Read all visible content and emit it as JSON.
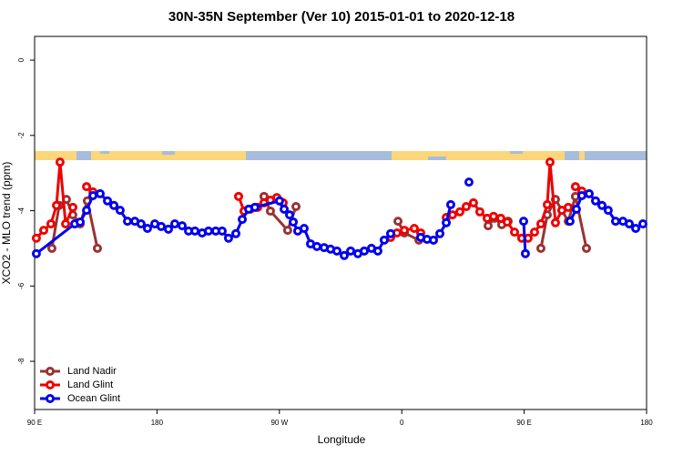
{
  "chart_data": {
    "type": "line",
    "title": "30N-35N September (Ver 10)   2015-01-01 to 2020-12-18",
    "x_label": "Longitude",
    "y_label": "XCO2 - MLO trend (ppm)",
    "xlim": [
      90,
      540
    ],
    "ylim": [
      -9.28,
      0.63
    ],
    "xticks": [
      {
        "value": 90,
        "label": "90 E"
      },
      180,
      {
        "value": 270,
        "label": "90 W"
      },
      {
        "value": 360,
        "label": "0"
      },
      {
        "value": 450,
        "label": "90 E"
      },
      {
        "value": 540,
        "label": "180"
      }
    ],
    "yticks": [
      0,
      -2,
      -4,
      -6,
      -8
    ],
    "legend": "bottom-left",
    "series": [
      {
        "name": "Land Nadir",
        "color": "#993333",
        "x": [
          102.7,
          108.1,
          113.4,
          118.1,
          123.5,
          128.8,
          136.2,
          null,
          258.7,
          263.4,
          276.1,
          282.2,
          null,
          357.2,
          361.9,
          372.6,
          null,
          423.5,
          428.1,
          433.5,
          438.2,
          null,
          462.3,
          467,
          473,
          477.7,
          482.4,
          487.7,
          495.8
        ],
        "values": [
          -5.0,
          -3.86,
          -3.7,
          -4.11,
          -4.35,
          -3.74,
          -5.0,
          null,
          -3.62,
          -4.01,
          -4.52,
          -3.89,
          null,
          -4.28,
          -4.59,
          -4.78,
          null,
          -4.4,
          -4.2,
          -4.37,
          -4.28,
          null,
          -5.0,
          -4.11,
          -3.7,
          -3.99,
          -4.28,
          -3.62,
          -5.0
        ]
      },
      {
        "name": "Land Glint",
        "color": "#ee0000",
        "x": [
          91.3,
          96.7,
          102,
          106.1,
          108.7,
          112.8,
          118.1,
          null,
          128.2,
          132.9,
          null,
          240,
          244,
          248.7,
          254,
          258.7,
          263.4,
          268.1,
          272.8,
          null,
          351.8,
          356.5,
          361.9,
          369.2,
          373.9,
          null,
          392.7,
          397.3,
          402.7,
          407.4,
          412.7,
          417.4,
          422.8,
          427.5,
          432.8,
          437.5,
          442.9,
          448.2,
          452.9,
          457.6,
          462.3,
          467,
          469,
          473,
          477.7,
          482.4,
          null,
          487.7,
          492.4
        ],
        "values": [
          -4.73,
          -4.52,
          -4.35,
          -3.86,
          -2.71,
          -4.35,
          -3.91,
          null,
          -3.36,
          -3.5,
          null,
          -3.62,
          -4.01,
          -3.96,
          -3.91,
          -3.79,
          -3.72,
          -3.65,
          -3.79,
          null,
          -4.71,
          -4.59,
          -4.52,
          -4.47,
          -4.59,
          null,
          -4.18,
          -4.11,
          -4.03,
          -3.89,
          -3.79,
          -4.03,
          -4.2,
          -4.15,
          -4.2,
          -4.3,
          -4.57,
          -4.73,
          -4.73,
          -4.57,
          -4.35,
          -3.84,
          -2.71,
          -4.32,
          -3.99,
          -3.91,
          null,
          -3.36,
          -3.48
        ]
      },
      {
        "name": "Ocean Glint",
        "color": "#0000ee",
        "x": [
          91.3,
          119.5,
          123.5,
          128.2,
          132.9,
          138.2,
          143.6,
          148.3,
          152.9,
          158.3,
          163.7,
          168.3,
          173,
          178.4,
          183.1,
          188.4,
          193.1,
          198.5,
          203.2,
          207.9,
          213.2,
          217.9,
          223.2,
          227.9,
          232.6,
          238,
          242.7,
          247.4,
          252,
          270.1,
          273.5,
          277.5,
          280.2,
          283.5,
          288.2,
          292.9,
          297.6,
          302.9,
          307.6,
          312.3,
          317.7,
          322.4,
          327.7,
          332.4,
          337.7,
          342.4,
          347.1,
          351.8,
          null,
          373.9,
          378.6,
          383.3,
          388,
          392.7,
          396,
          null,
          409.4,
          null,
          449.6,
          450.9,
          null,
          483.7,
          488.4,
          492.4,
          497.8,
          502.5,
          507.2,
          511.8,
          517.2,
          522.6,
          527.3,
          532,
          537.3
        ],
        "values": [
          -5.14,
          -4.35,
          -4.3,
          -3.99,
          -3.6,
          -3.55,
          -3.74,
          -3.86,
          -3.99,
          -4.28,
          -4.28,
          -4.35,
          -4.47,
          -4.35,
          -4.42,
          -4.49,
          -4.35,
          -4.4,
          -4.54,
          -4.54,
          -4.59,
          -4.54,
          -4.54,
          -4.54,
          -4.73,
          -4.61,
          -4.23,
          -3.96,
          -3.91,
          -3.74,
          -3.96,
          -4.11,
          -4.3,
          -4.54,
          -4.47,
          -4.88,
          -4.95,
          -4.98,
          -5.02,
          -5.07,
          -5.19,
          -5.07,
          -5.14,
          -5.07,
          -5.0,
          -5.07,
          -4.78,
          -4.61,
          null,
          -4.71,
          -4.76,
          -4.78,
          -4.61,
          -4.32,
          -3.84,
          null,
          -3.24,
          null,
          -4.28,
          -5.14,
          null,
          -4.28,
          -3.96,
          -3.6,
          -3.55,
          -3.74,
          -3.86,
          -3.99,
          -4.28,
          -4.28,
          -4.35,
          -4.47,
          -4.35
        ]
      }
    ]
  }
}
